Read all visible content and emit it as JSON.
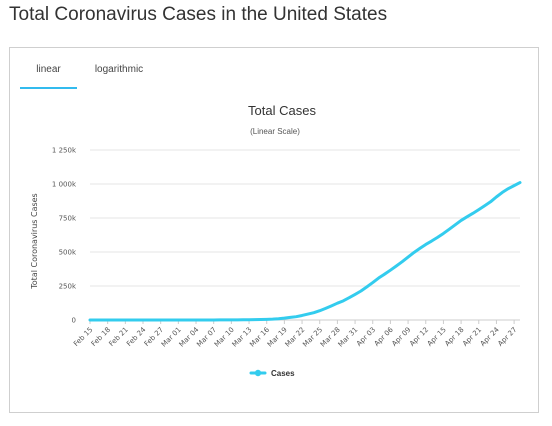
{
  "page": {
    "title": "Total Coronavirus Cases in the United States"
  },
  "tabs": [
    {
      "label": "linear",
      "active": true
    },
    {
      "label": "logarithmic",
      "active": false
    }
  ],
  "colors": {
    "accent": "#33bbee",
    "line": "#33ccee",
    "grid": "#e6e6e6"
  },
  "chart_data": {
    "type": "line",
    "title": "Total Cases",
    "subtitle": "(Linear Scale)",
    "ylabel": "Total Coronavirus Cases",
    "xlabel": "",
    "ylim": [
      0,
      1250000
    ],
    "yticks": [
      {
        "value": 0,
        "label": "0"
      },
      {
        "value": 250000,
        "label": "250k"
      },
      {
        "value": 500000,
        "label": "500k"
      },
      {
        "value": 750000,
        "label": "750k"
      },
      {
        "value": 1000000,
        "label": "1 000k"
      },
      {
        "value": 1250000,
        "label": "1 250k"
      }
    ],
    "xticks": [
      "Feb 15",
      "Feb 18",
      "Feb 21",
      "Feb 24",
      "Feb 27",
      "Mar 01",
      "Mar 04",
      "Mar 07",
      "Mar 10",
      "Mar 13",
      "Mar 16",
      "Mar 19",
      "Mar 22",
      "Mar 25",
      "Mar 28",
      "Mar 31",
      "Apr 03",
      "Apr 06",
      "Apr 09",
      "Apr 12",
      "Apr 15",
      "Apr 18",
      "Apr 21",
      "Apr 24",
      "Apr 27"
    ],
    "legend": {
      "position": "bottom-center"
    },
    "grid": true,
    "series": [
      {
        "name": "Cases",
        "x": [
          "Feb 15",
          "Feb 16",
          "Feb 17",
          "Feb 18",
          "Feb 19",
          "Feb 20",
          "Feb 21",
          "Feb 22",
          "Feb 23",
          "Feb 24",
          "Feb 25",
          "Feb 26",
          "Feb 27",
          "Feb 28",
          "Feb 29",
          "Mar 01",
          "Mar 02",
          "Mar 03",
          "Mar 04",
          "Mar 05",
          "Mar 06",
          "Mar 07",
          "Mar 08",
          "Mar 09",
          "Mar 10",
          "Mar 11",
          "Mar 12",
          "Mar 13",
          "Mar 14",
          "Mar 15",
          "Mar 16",
          "Mar 17",
          "Mar 18",
          "Mar 19",
          "Mar 20",
          "Mar 21",
          "Mar 22",
          "Mar 23",
          "Mar 24",
          "Mar 25",
          "Mar 26",
          "Mar 27",
          "Mar 28",
          "Mar 29",
          "Mar 30",
          "Mar 31",
          "Apr 01",
          "Apr 02",
          "Apr 03",
          "Apr 04",
          "Apr 05",
          "Apr 06",
          "Apr 07",
          "Apr 08",
          "Apr 09",
          "Apr 10",
          "Apr 11",
          "Apr 12",
          "Apr 13",
          "Apr 14",
          "Apr 15",
          "Apr 16",
          "Apr 17",
          "Apr 18",
          "Apr 19",
          "Apr 20",
          "Apr 21",
          "Apr 22",
          "Apr 23",
          "Apr 24",
          "Apr 25",
          "Apr 26",
          "Apr 27",
          "Apr 28"
        ],
        "values": [
          15,
          15,
          15,
          15,
          15,
          15,
          35,
          35,
          35,
          53,
          53,
          59,
          60,
          62,
          70,
          75,
          100,
          124,
          158,
          221,
          319,
          435,
          541,
          704,
          994,
          1301,
          1697,
          2247,
          2943,
          3680,
          4663,
          6411,
          9197,
          13779,
          19367,
          24418,
          33227,
          43850,
          53938,
          68211,
          85356,
          103942,
          123578,
          140904,
          163788,
          188172,
          213242,
          243622,
          275367,
          308650,
          336802,
          366317,
          397121,
          428654,
          462780,
          496535,
          526396,
          555313,
          580619,
          607670,
          636350,
          667801,
          699706,
          732197,
          758809,
          784326,
          811865,
          840351,
          869172,
          905358,
          938154,
          965785,
          988197,
          1010356
        ]
      }
    ]
  }
}
